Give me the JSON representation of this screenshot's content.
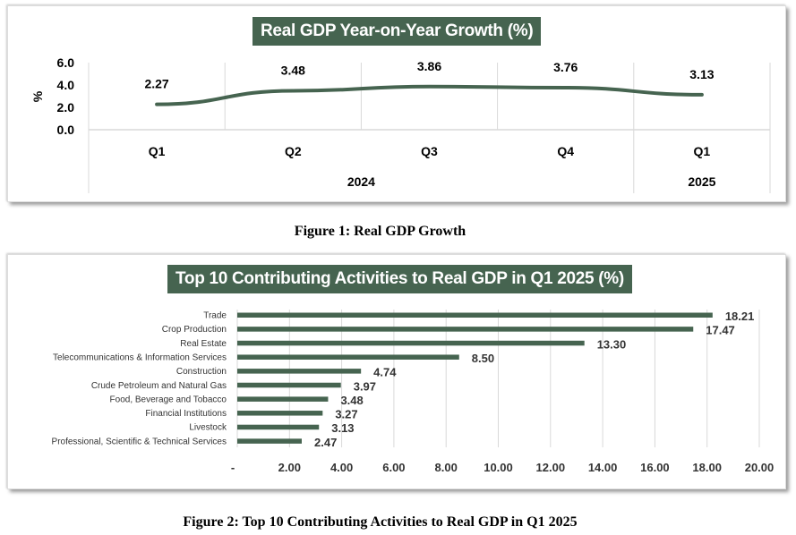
{
  "colors": {
    "accent": "#466450",
    "grid": "#d9d9d9"
  },
  "chart_data": [
    {
      "type": "line",
      "title": "Real GDP Year-on-Year Growth (%)",
      "ylabel": "%",
      "ylim": [
        0,
        6
      ],
      "yticks": [
        "6.0",
        "4.0",
        "2.0",
        "0.0"
      ],
      "categories": [
        "Q1",
        "Q2",
        "Q3",
        "Q4",
        "Q1"
      ],
      "groups": [
        {
          "label": "2024",
          "span": 4
        },
        {
          "label": "2025",
          "span": 1
        }
      ],
      "values": [
        2.27,
        3.48,
        3.86,
        3.76,
        3.13
      ],
      "data_labels": [
        "2.27",
        "3.48",
        "3.86",
        "3.76",
        "3.13"
      ],
      "grid": "vertical"
    },
    {
      "type": "bar",
      "orientation": "horizontal",
      "title": "Top 10 Contributing Activities to Real GDP in Q1 2025 (%)",
      "categories": [
        "Trade",
        "Crop Production",
        "Real Estate",
        "Telecommunications & Information Services",
        "Construction",
        "Crude Petroleum and Natural Gas",
        "Food, Beverage and Tobacco",
        "Financial Institutions",
        "Livestock",
        "Professional, Scientific & Technical Services"
      ],
      "values": [
        18.21,
        17.47,
        13.3,
        8.5,
        4.74,
        3.97,
        3.48,
        3.27,
        3.13,
        2.47
      ],
      "data_labels": [
        "18.21",
        "17.47",
        "13.30",
        "8.50",
        "4.74",
        "3.97",
        "3.48",
        "3.27",
        "3.13",
        "2.47"
      ],
      "xlim": [
        0,
        20
      ],
      "xticks": [
        "-",
        "2.00",
        "4.00",
        "6.00",
        "8.00",
        "10.00",
        "12.00",
        "14.00",
        "16.00",
        "18.00",
        "20.00"
      ],
      "grid": "vertical"
    }
  ],
  "captions": {
    "fig1": "Figure 1: Real GDP Growth",
    "fig2": "Figure 2: Top 10 Contributing Activities to Real GDP in Q1 2025"
  }
}
